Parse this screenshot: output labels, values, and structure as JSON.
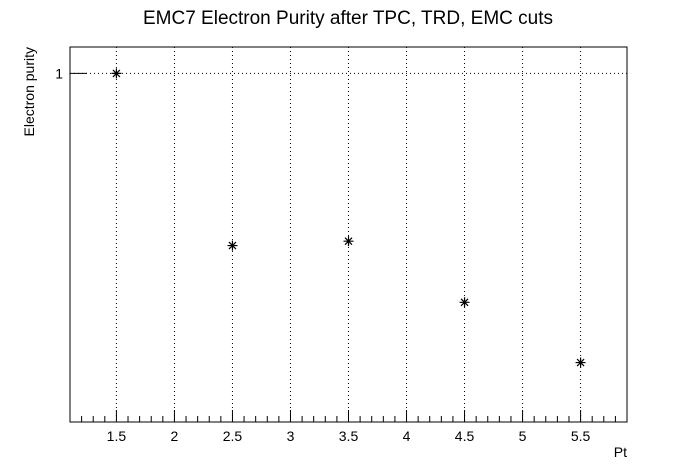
{
  "chart_data": {
    "type": "scatter",
    "title": "EMC7 Electron Purity after TPC, TRD, EMC cuts",
    "xlabel": "Pt",
    "ylabel": "Electron purity",
    "xlim": [
      1.1,
      5.9
    ],
    "ylim": [
      0.77,
      1.02
    ],
    "yscale": "log",
    "grid": true,
    "legend": "none",
    "marker": "star",
    "color": "#000000",
    "x_ticks": [
      1.5,
      2,
      2.5,
      3,
      3.5,
      4,
      4.5,
      5,
      5.5
    ],
    "x_tick_labels": [
      "1.5",
      "2",
      "2.5",
      "3",
      "3.5",
      "4",
      "4.5",
      "5",
      "5.5"
    ],
    "y_ticks": [
      1
    ],
    "y_tick_labels": [
      "1"
    ],
    "x": [
      1.5,
      2.5,
      3.5,
      4.5,
      5.5
    ],
    "y": [
      1.0,
      0.8789,
      0.8818,
      0.8423,
      0.8051
    ]
  }
}
